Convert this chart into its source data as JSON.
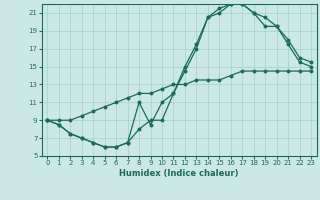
{
  "xlabel": "Humidex (Indice chaleur)",
  "bg_color": "#cce8e4",
  "grid_color": "#aad4ce",
  "line_color": "#1a6b5a",
  "xlim": [
    -0.5,
    23.5
  ],
  "ylim": [
    5,
    22
  ],
  "xticks": [
    0,
    1,
    2,
    3,
    4,
    5,
    6,
    7,
    8,
    9,
    10,
    11,
    12,
    13,
    14,
    15,
    16,
    17,
    18,
    19,
    20,
    21,
    22,
    23
  ],
  "yticks": [
    5,
    7,
    9,
    11,
    13,
    15,
    17,
    19,
    21
  ],
  "line1_x": [
    0,
    1,
    2,
    3,
    4,
    5,
    6,
    7,
    8,
    9,
    10,
    11,
    12,
    13,
    14,
    15,
    16,
    17,
    18,
    19,
    20,
    21,
    22,
    23
  ],
  "line1_y": [
    9,
    8.5,
    7.5,
    7,
    6.5,
    6,
    6,
    6.5,
    11,
    8.5,
    11,
    12,
    14.5,
    17,
    20.5,
    21,
    22,
    22,
    21,
    20.5,
    19.5,
    18,
    16,
    15.5
  ],
  "line2_x": [
    0,
    1,
    2,
    3,
    4,
    5,
    6,
    7,
    8,
    9,
    10,
    11,
    12,
    13,
    14,
    15,
    16,
    17,
    18,
    19,
    20,
    21,
    22,
    23
  ],
  "line2_y": [
    9,
    8.5,
    7.5,
    7,
    6.5,
    6,
    6,
    6.5,
    8,
    9,
    9,
    12,
    15,
    17.5,
    20.5,
    21.5,
    22,
    22,
    21,
    19.5,
    19.5,
    17.5,
    15.5,
    15
  ],
  "line3_x": [
    0,
    1,
    2,
    3,
    4,
    5,
    6,
    7,
    8,
    9,
    10,
    11,
    12,
    13,
    14,
    15,
    16,
    17,
    18,
    19,
    20,
    21,
    22,
    23
  ],
  "line3_y": [
    9,
    9,
    9,
    9.5,
    10,
    10.5,
    11,
    11.5,
    12,
    12,
    12.5,
    13,
    13,
    13.5,
    13.5,
    13.5,
    14,
    14.5,
    14.5,
    14.5,
    14.5,
    14.5,
    14.5,
    14.5
  ],
  "tick_fontsize": 5,
  "xlabel_fontsize": 6
}
